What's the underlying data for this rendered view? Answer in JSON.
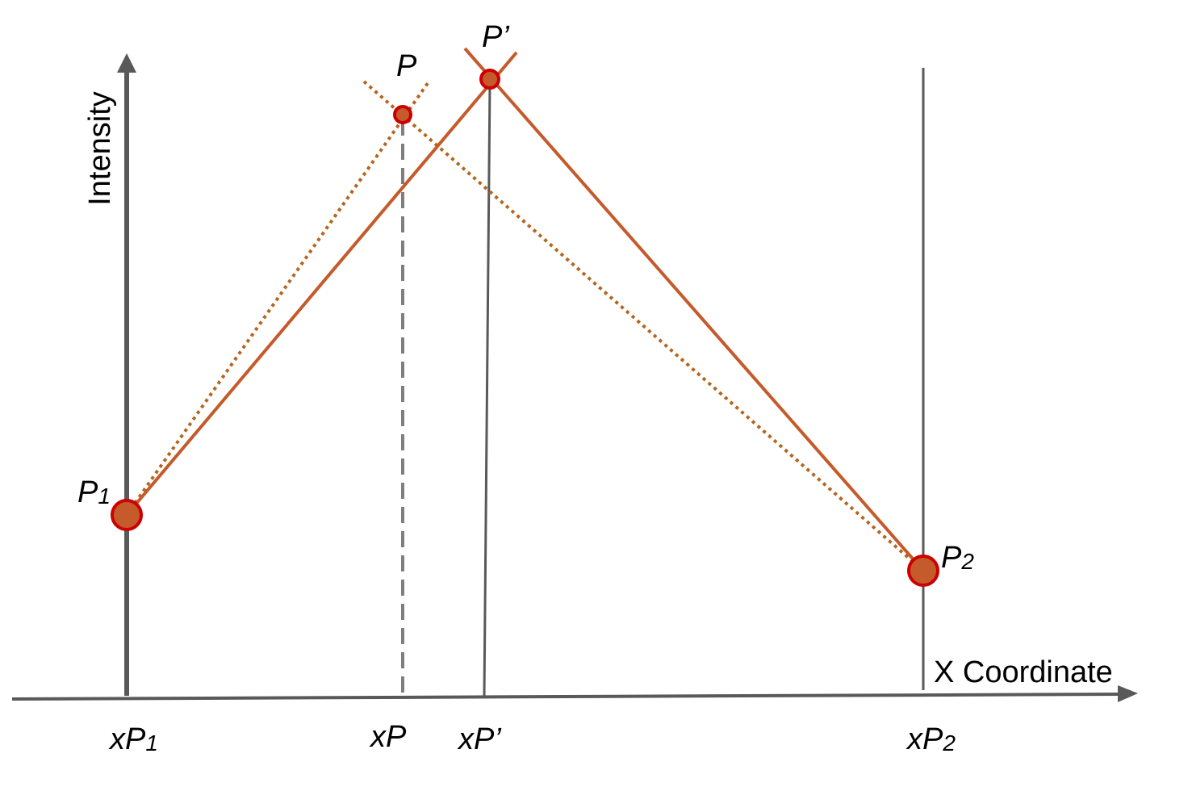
{
  "axes": {
    "y_label": "Intensity",
    "x_label": "X Coordinate"
  },
  "points": {
    "p1": {
      "label": "P",
      "sub": "1"
    },
    "p2": {
      "label": "P",
      "sub": "2"
    },
    "p": {
      "label": "P"
    },
    "p_prime": {
      "label": "P’"
    }
  },
  "ticks": {
    "xp1": {
      "label": "xP",
      "sub": "1"
    },
    "xp": {
      "label": "xP"
    },
    "xp_prime": {
      "label": "xP’"
    },
    "xp2": {
      "label": "xP",
      "sub": "2"
    }
  },
  "colors": {
    "axis": "#595959",
    "guide": "#7f7f7f",
    "solid_line": "#c55a2a",
    "dotted_line": "#b5651d",
    "point_fill": "#c55a2a",
    "point_stroke": "#cc0000"
  }
}
